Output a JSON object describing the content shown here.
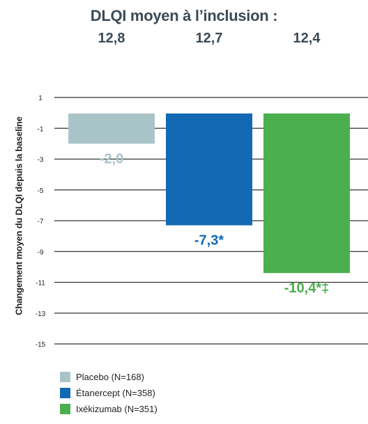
{
  "header": {
    "title": "DLQI moyen à l’inclusion :",
    "baseline_values": [
      "12,8",
      "12,7",
      "12,4"
    ]
  },
  "colors": {
    "placebo": "#a9c4c9",
    "etanercept": "#1369b4",
    "ixekizumab": "#4caf4f",
    "axis": "#333333"
  },
  "chart_data": {
    "type": "bar",
    "title": "",
    "xlabel": "",
    "ylabel": "Changement moyen du DLQI  depuis la baseline",
    "ylim": [
      -15,
      1
    ],
    "yticks": [
      "1",
      "-1",
      "-3",
      "-5",
      "-7",
      "-9",
      "-11",
      "-13",
      "-15"
    ],
    "grid": true,
    "categories": [
      "Placebo (N=168)",
      "Étanercept (N=358)",
      "Ixékizumab (N=351)"
    ],
    "values": [
      -2.0,
      -7.3,
      -10.4
    ],
    "data_labels": [
      "-2,0",
      "-7,3*",
      "-10,4*‡"
    ],
    "legend": [
      "Placebo (N=168)",
      "Étanercept (N=358)",
      "Ixékizumab (N=351)"
    ],
    "legend_position": "bottom-left"
  }
}
